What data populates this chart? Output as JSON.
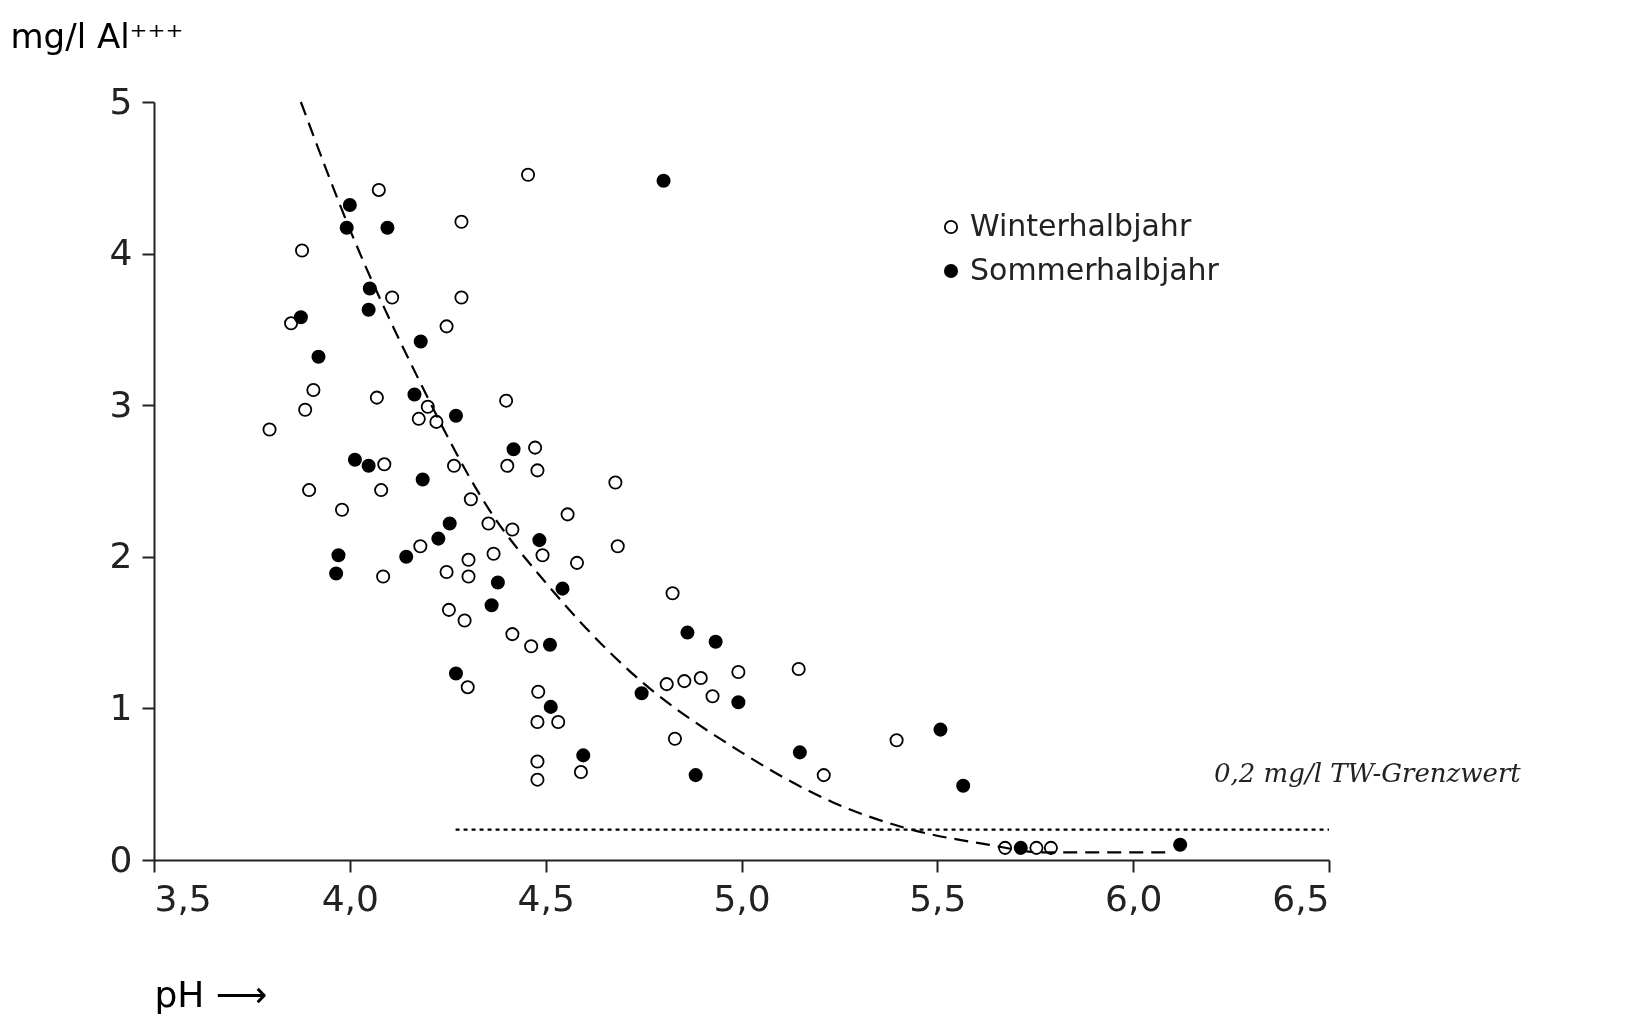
{
  "chart_data": {
    "type": "scatter",
    "xlabel": "pH ⟶",
    "ylabel": "mg/l Al⁺⁺⁺",
    "xlim": [
      3.5,
      6.5
    ],
    "ylim": [
      0,
      5
    ],
    "xticks": [
      {
        "value": 3.5,
        "label": "3,5"
      },
      {
        "value": 4.0,
        "label": "4,0"
      },
      {
        "value": 4.5,
        "label": "4,5"
      },
      {
        "value": 5.0,
        "label": "5,0"
      },
      {
        "value": 5.5,
        "label": "5,5"
      },
      {
        "value": 6.0,
        "label": "6,0"
      },
      {
        "value": 6.5,
        "label": "6,5"
      }
    ],
    "yticks": [
      0,
      1,
      2,
      3,
      4,
      5
    ],
    "grid": false,
    "legend": "top right",
    "marker": "circle",
    "series": [
      {
        "name": "Winterhalbjahr",
        "color": "#ffffff",
        "x": [
          3.795,
          3.878,
          3.85,
          3.907,
          3.886,
          3.896,
          3.98,
          4.074,
          4.108,
          4.069,
          4.088,
          4.08,
          4.085,
          4.285,
          4.285,
          4.247,
          4.199,
          4.176,
          4.221,
          4.266,
          4.309,
          4.354,
          4.18,
          4.367,
          4.303,
          4.247,
          4.303,
          4.253,
          4.293,
          4.301,
          4.455,
          4.399,
          4.402,
          4.473,
          4.479,
          4.415,
          4.492,
          4.556,
          4.58,
          4.415,
          4.463,
          4.481,
          4.479,
          4.532,
          4.479,
          4.479,
          4.59,
          4.678,
          4.684,
          4.824,
          4.83,
          4.809,
          4.854,
          4.896,
          4.926,
          4.992,
          5.146,
          5.21,
          5.396,
          5.673,
          5.753,
          5.79
        ],
        "values": [
          2.84,
          4.02,
          3.54,
          3.1,
          2.97,
          2.44,
          2.31,
          4.42,
          3.71,
          3.05,
          2.61,
          2.44,
          1.87,
          4.21,
          3.71,
          3.52,
          2.99,
          2.91,
          2.89,
          2.6,
          2.38,
          2.22,
          2.07,
          2.02,
          1.98,
          1.9,
          1.87,
          1.65,
          1.58,
          1.14,
          4.52,
          3.03,
          2.6,
          2.72,
          2.57,
          2.18,
          2.01,
          2.28,
          1.96,
          1.49,
          1.41,
          1.11,
          0.91,
          0.91,
          0.65,
          0.53,
          0.58,
          2.49,
          2.07,
          1.76,
          0.8,
          1.16,
          1.18,
          1.2,
          1.08,
          1.24,
          1.26,
          0.56,
          0.79,
          0.08,
          0.08,
          0.08
        ]
      },
      {
        "name": "Sommerhalbjahr",
        "color": "#000000",
        "x": [
          4.0,
          3.992,
          4.096,
          4.051,
          4.048,
          3.875,
          3.92,
          4.181,
          4.165,
          4.271,
          4.013,
          4.048,
          4.186,
          4.255,
          4.226,
          4.144,
          3.971,
          3.965,
          4.418,
          4.484,
          4.378,
          4.543,
          4.362,
          4.511,
          4.271,
          4.513,
          4.596,
          4.801,
          4.745,
          4.862,
          4.934,
          4.992,
          4.883,
          5.149,
          5.508,
          5.566,
          5.713,
          6.12
        ],
        "values": [
          4.32,
          4.17,
          4.17,
          3.77,
          3.63,
          3.58,
          3.32,
          3.42,
          3.07,
          2.93,
          2.64,
          2.6,
          2.51,
          2.22,
          2.12,
          2.0,
          2.01,
          1.89,
          2.71,
          2.11,
          1.83,
          1.79,
          1.68,
          1.42,
          1.23,
          1.01,
          0.69,
          4.48,
          1.1,
          1.5,
          1.44,
          1.04,
          0.56,
          0.71,
          0.86,
          0.49,
          0.08,
          0.1
        ]
      },
      {
        "type": "line",
        "color": "#000000",
        "line_style": "dashed",
        "marker": "none",
        "x": [
          3.875,
          4.0,
          4.17,
          4.356,
          4.5,
          4.7,
          5.0,
          5.234,
          5.42,
          5.633,
          5.766,
          6.085
        ],
        "values": [
          5.0,
          4.16,
          3.2,
          2.31,
          1.83,
          1.28,
          0.71,
          0.38,
          0.21,
          0.1,
          0.05,
          0.05
        ]
      },
      {
        "type": "line",
        "color": "#000000",
        "line_style": "dotted",
        "marker": "none",
        "x": [
          4.27,
          6.5
        ],
        "values": [
          0.2,
          0.2
        ]
      }
    ],
    "annotations": [
      "0,2 mg/l TW-Grenzwert"
    ]
  }
}
